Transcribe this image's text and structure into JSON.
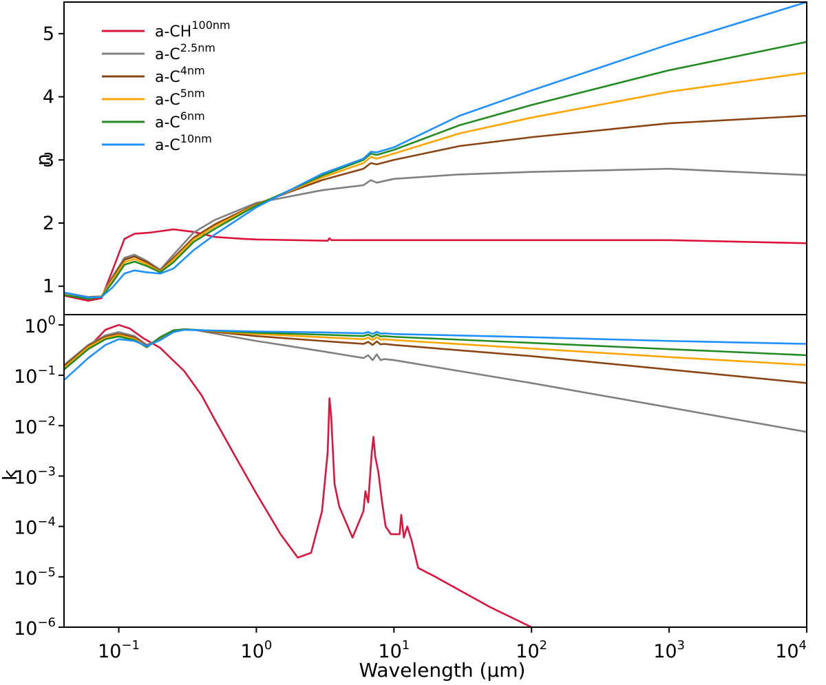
{
  "chart_data": [
    {
      "panel": "top",
      "type": "line",
      "ylabel": "n",
      "xscale": "log",
      "xlim": [
        0.04,
        10000
      ],
      "ylim": [
        0.55,
        5.5
      ],
      "yticks": [
        1,
        2,
        3,
        4,
        5
      ],
      "ytick_labels": [
        "1",
        "2",
        "3",
        "4",
        "5"
      ],
      "legend_position": "top-left",
      "legend": [
        {
          "base": "a-CH",
          "sup": "100nm",
          "color": "#dc143c"
        },
        {
          "base": "a-C",
          "sup": "2.5nm",
          "color": "#808080"
        },
        {
          "base": "a-C",
          "sup": "4nm",
          "color": "#8b4513"
        },
        {
          "base": "a-C",
          "sup": "5nm",
          "color": "#ffa500"
        },
        {
          "base": "a-C",
          "sup": "6nm",
          "color": "#228b22"
        },
        {
          "base": "a-C",
          "sup": "10nm",
          "color": "#1e90ff"
        }
      ],
      "series": [
        {
          "name": "a-CH 100nm",
          "color": "#dc143c",
          "x": [
            0.04,
            0.06,
            0.075,
            0.09,
            0.11,
            0.13,
            0.17,
            0.25,
            0.35,
            0.5,
            0.8,
            1,
            3.3,
            3.4,
            3.5,
            10,
            100,
            1000,
            10000
          ],
          "y": [
            0.85,
            0.77,
            0.81,
            1.25,
            1.75,
            1.83,
            1.85,
            1.9,
            1.86,
            1.78,
            1.75,
            1.74,
            1.72,
            1.76,
            1.73,
            1.73,
            1.73,
            1.73,
            1.68
          ]
        },
        {
          "name": "a-C 2.5nm",
          "color": "#808080",
          "x": [
            0.04,
            0.06,
            0.075,
            0.09,
            0.11,
            0.13,
            0.16,
            0.2,
            0.25,
            0.35,
            0.5,
            1,
            3,
            6,
            6.8,
            7.5,
            10,
            30,
            100,
            1000,
            10000
          ],
          "y": [
            0.9,
            0.83,
            0.84,
            1.15,
            1.45,
            1.5,
            1.4,
            1.26,
            1.5,
            1.85,
            2.05,
            2.32,
            2.52,
            2.6,
            2.68,
            2.64,
            2.7,
            2.77,
            2.81,
            2.86,
            2.76
          ]
        },
        {
          "name": "a-C 4nm",
          "color": "#8b4513",
          "x": [
            0.04,
            0.06,
            0.075,
            0.09,
            0.11,
            0.13,
            0.16,
            0.2,
            0.25,
            0.35,
            0.5,
            1,
            3,
            6,
            6.8,
            7.5,
            10,
            30,
            100,
            1000,
            10000
          ],
          "y": [
            0.88,
            0.82,
            0.84,
            1.12,
            1.42,
            1.47,
            1.38,
            1.24,
            1.45,
            1.77,
            1.98,
            2.3,
            2.68,
            2.86,
            2.95,
            2.93,
            3.0,
            3.22,
            3.36,
            3.58,
            3.7
          ]
        },
        {
          "name": "a-C 5nm",
          "color": "#ffa500",
          "x": [
            0.04,
            0.06,
            0.075,
            0.09,
            0.11,
            0.13,
            0.16,
            0.2,
            0.25,
            0.35,
            0.5,
            1,
            3,
            6,
            6.8,
            7.5,
            10,
            30,
            100,
            1000,
            10000
          ],
          "y": [
            0.87,
            0.81,
            0.84,
            1.1,
            1.38,
            1.43,
            1.35,
            1.23,
            1.42,
            1.74,
            1.95,
            2.29,
            2.72,
            2.95,
            3.05,
            3.02,
            3.1,
            3.42,
            3.67,
            4.08,
            4.38
          ]
        },
        {
          "name": "a-C 6nm",
          "color": "#228b22",
          "x": [
            0.04,
            0.06,
            0.075,
            0.09,
            0.11,
            0.13,
            0.16,
            0.2,
            0.25,
            0.35,
            0.5,
            1,
            3,
            6,
            6.8,
            7.5,
            10,
            30,
            100,
            1000,
            10000
          ],
          "y": [
            0.86,
            0.8,
            0.83,
            1.06,
            1.34,
            1.39,
            1.32,
            1.22,
            1.38,
            1.7,
            1.91,
            2.28,
            2.75,
            3.0,
            3.1,
            3.08,
            3.16,
            3.55,
            3.87,
            4.42,
            4.87
          ]
        },
        {
          "name": "a-C 10nm",
          "color": "#1e90ff",
          "x": [
            0.04,
            0.06,
            0.075,
            0.09,
            0.11,
            0.13,
            0.16,
            0.2,
            0.25,
            0.35,
            0.5,
            1,
            3,
            6,
            6.8,
            7.5,
            10,
            30,
            100,
            1000,
            10000
          ],
          "y": [
            0.9,
            0.82,
            0.83,
            0.98,
            1.2,
            1.25,
            1.22,
            1.2,
            1.28,
            1.57,
            1.82,
            2.25,
            2.78,
            3.02,
            3.13,
            3.12,
            3.2,
            3.7,
            4.1,
            4.83,
            5.5
          ]
        }
      ]
    },
    {
      "panel": "bottom",
      "type": "line",
      "xlabel": "Wavelength (μm)",
      "ylabel": "k",
      "xscale": "log",
      "yscale": "log",
      "xlim": [
        0.04,
        10000
      ],
      "ylim": [
        1e-06,
        1.6
      ],
      "xticks": [
        {
          "base": "10",
          "sup": "−1"
        },
        {
          "base": "10",
          "sup": "0"
        },
        {
          "base": "10",
          "sup": "1"
        },
        {
          "base": "10",
          "sup": "2"
        },
        {
          "base": "10",
          "sup": "3"
        },
        {
          "base": "10",
          "sup": "4"
        }
      ],
      "yticks": [
        {
          "base": "10",
          "sup": "0"
        },
        {
          "base": "10",
          "sup": "−1"
        },
        {
          "base": "10",
          "sup": "−2"
        },
        {
          "base": "10",
          "sup": "−3"
        },
        {
          "base": "10",
          "sup": "−4"
        },
        {
          "base": "10",
          "sup": "−5"
        },
        {
          "base": "10",
          "sup": "−6"
        }
      ],
      "series": [
        {
          "name": "a-CH 100nm",
          "color": "#dc143c",
          "x": [
            0.04,
            0.06,
            0.08,
            0.1,
            0.12,
            0.15,
            0.2,
            0.3,
            0.4,
            0.5,
            0.7,
            1,
            1.5,
            2,
            2.5,
            3,
            3.3,
            3.4,
            3.5,
            3.7,
            4,
            5,
            6,
            6.2,
            6.5,
            6.9,
            7.1,
            7.3,
            7.7,
            8.2,
            8.7,
            9.5,
            11,
            11.3,
            11.8,
            12.5,
            13.5,
            15,
            20,
            50,
            100
          ],
          "y": [
            0.13,
            0.35,
            0.8,
            1.0,
            0.85,
            0.55,
            0.35,
            0.12,
            0.04,
            0.013,
            0.0025,
            0.00045,
            7e-05,
            2.4e-05,
            3e-05,
            0.0002,
            0.003,
            0.035,
            0.015,
            0.0007,
            0.00025,
            6e-05,
            0.0002,
            0.0005,
            0.0003,
            0.003,
            0.006,
            0.0025,
            0.0012,
            0.0003,
            0.0001,
            7e-05,
            7e-05,
            0.00017,
            6e-05,
            0.0001,
            5e-05,
            1.5e-05,
            1e-05,
            2.5e-06,
            1e-06
          ]
        },
        {
          "name": "a-C 2.5nm",
          "color": "#808080",
          "x": [
            0.04,
            0.06,
            0.08,
            0.1,
            0.13,
            0.16,
            0.2,
            0.25,
            0.3,
            0.35,
            1,
            3,
            6,
            6.5,
            7,
            7.5,
            8,
            8.5,
            10,
            100,
            1000,
            10000
          ],
          "y": [
            0.16,
            0.4,
            0.62,
            0.72,
            0.6,
            0.4,
            0.52,
            0.75,
            0.82,
            0.8,
            0.48,
            0.3,
            0.22,
            0.25,
            0.2,
            0.26,
            0.2,
            0.21,
            0.2,
            0.07,
            0.023,
            0.0075
          ]
        },
        {
          "name": "a-C 4nm",
          "color": "#8b4513",
          "x": [
            0.04,
            0.06,
            0.08,
            0.1,
            0.13,
            0.16,
            0.2,
            0.25,
            0.3,
            0.35,
            1,
            3,
            6,
            6.5,
            7,
            7.5,
            8,
            8.5,
            10,
            100,
            1000,
            10000
          ],
          "y": [
            0.15,
            0.38,
            0.58,
            0.66,
            0.56,
            0.38,
            0.55,
            0.78,
            0.82,
            0.8,
            0.6,
            0.48,
            0.42,
            0.46,
            0.4,
            0.47,
            0.41,
            0.42,
            0.4,
            0.24,
            0.13,
            0.07
          ]
        },
        {
          "name": "a-C 5nm",
          "color": "#ffa500",
          "x": [
            0.04,
            0.06,
            0.08,
            0.1,
            0.13,
            0.16,
            0.2,
            0.25,
            0.3,
            0.35,
            1,
            3,
            6,
            6.5,
            7,
            7.5,
            8,
            8.5,
            10,
            100,
            1000,
            10000
          ],
          "y": [
            0.14,
            0.36,
            0.55,
            0.63,
            0.53,
            0.37,
            0.56,
            0.78,
            0.82,
            0.8,
            0.66,
            0.57,
            0.52,
            0.56,
            0.5,
            0.57,
            0.51,
            0.52,
            0.5,
            0.34,
            0.23,
            0.16
          ]
        },
        {
          "name": "a-C 6nm",
          "color": "#228b22",
          "x": [
            0.04,
            0.06,
            0.08,
            0.1,
            0.13,
            0.16,
            0.2,
            0.25,
            0.3,
            0.35,
            1,
            3,
            6,
            6.5,
            7,
            7.5,
            8,
            8.5,
            10,
            100,
            1000,
            10000
          ],
          "y": [
            0.13,
            0.33,
            0.52,
            0.59,
            0.5,
            0.36,
            0.57,
            0.78,
            0.82,
            0.8,
            0.7,
            0.64,
            0.6,
            0.64,
            0.58,
            0.65,
            0.59,
            0.6,
            0.58,
            0.44,
            0.33,
            0.25
          ]
        },
        {
          "name": "a-C 10nm",
          "color": "#1e90ff",
          "x": [
            0.04,
            0.06,
            0.08,
            0.1,
            0.13,
            0.16,
            0.2,
            0.25,
            0.3,
            0.35,
            1,
            3,
            6,
            6.5,
            7,
            7.5,
            8,
            8.5,
            10,
            100,
            1000,
            10000
          ],
          "y": [
            0.08,
            0.22,
            0.4,
            0.52,
            0.48,
            0.38,
            0.5,
            0.72,
            0.8,
            0.79,
            0.74,
            0.71,
            0.68,
            0.72,
            0.66,
            0.73,
            0.67,
            0.68,
            0.66,
            0.57,
            0.48,
            0.42
          ]
        }
      ]
    }
  ]
}
